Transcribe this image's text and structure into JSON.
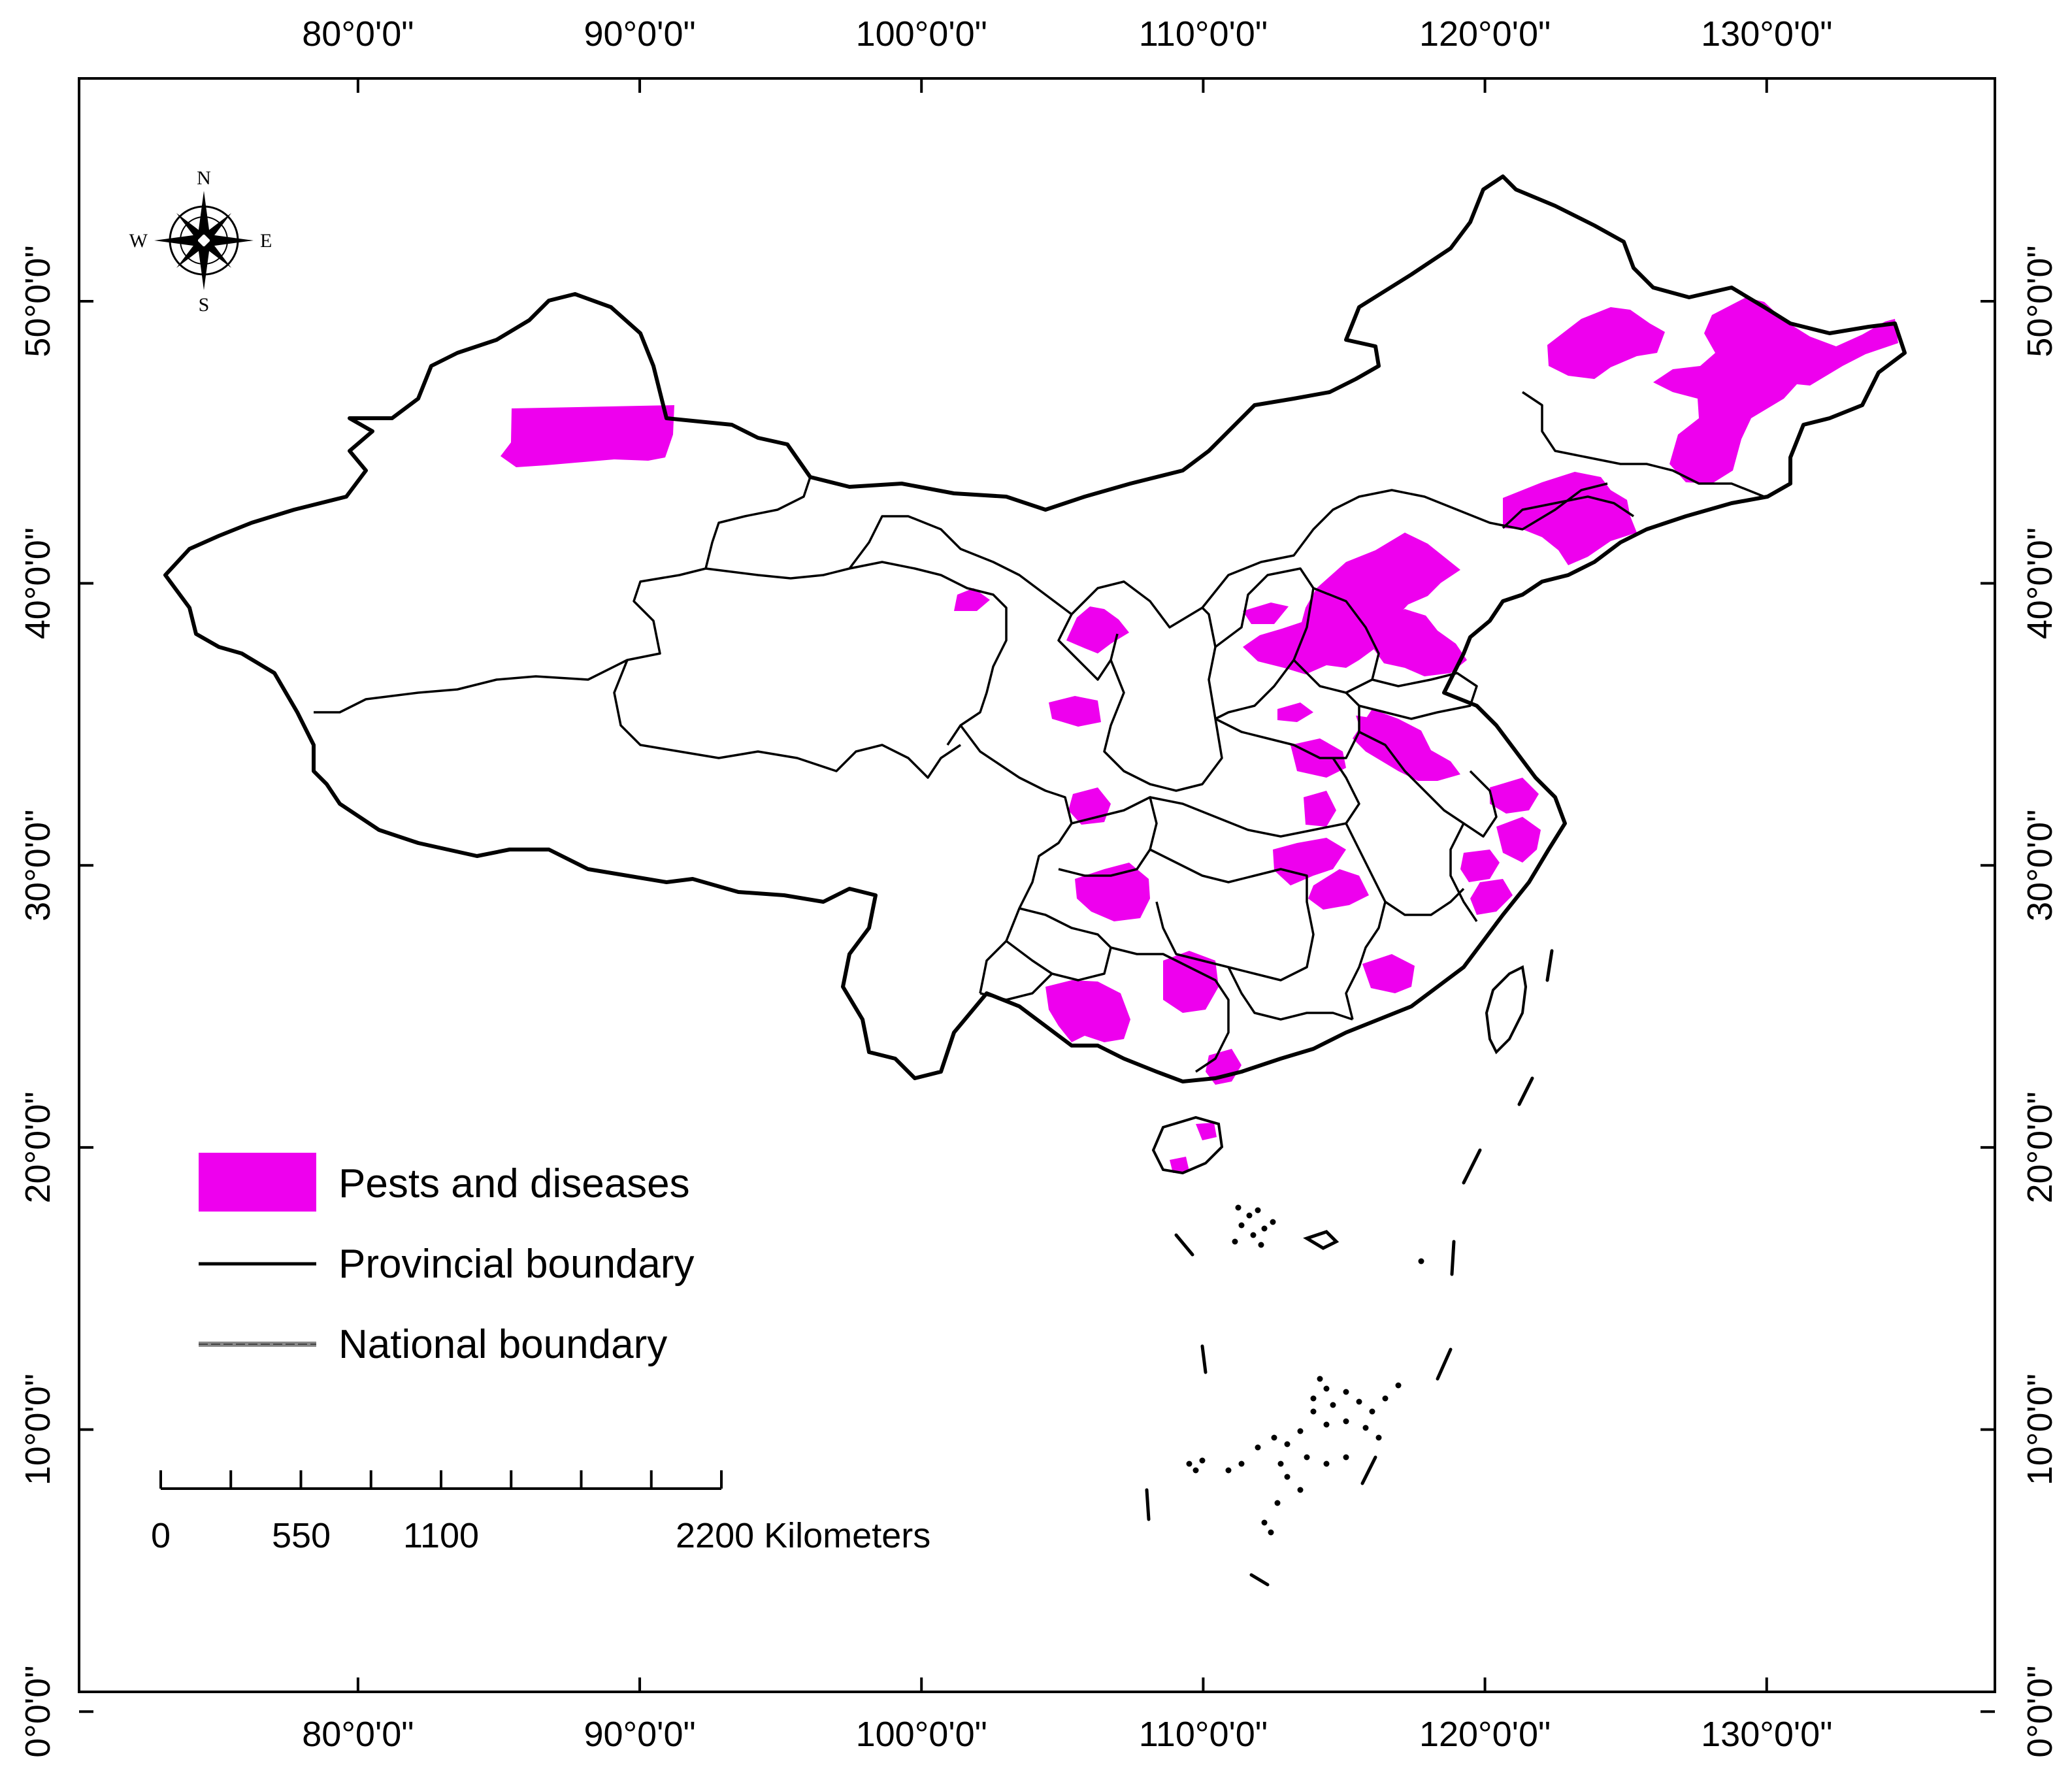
{
  "map": {
    "longitude_labels": [
      "80°0'0\"",
      "90°0'0\"",
      "100°0'0\"",
      "110°0'0\"",
      "120°0'0\"",
      "130°0'0\""
    ],
    "latitude_labels": [
      "0°0'0\"",
      "10°0'0\"",
      "20°0'0\"",
      "30°0'0\"",
      "40°0'0\"",
      "50°0'0\""
    ],
    "longitude_values": [
      80,
      90,
      100,
      110,
      120,
      130
    ],
    "latitude_values": [
      0,
      10,
      20,
      30,
      40,
      50
    ],
    "extent": {
      "lon_min": 70.1,
      "lon_max": 138.1,
      "lat_min": 0.7,
      "lat_max": 57.9
    }
  },
  "compass": {
    "north": "N",
    "south": "S",
    "east": "E",
    "west": "W"
  },
  "legend": {
    "items": [
      {
        "label": "Pests and diseases",
        "color": "#ee00ee"
      },
      {
        "label": "Provincial boundary",
        "color": "#000000"
      },
      {
        "label": "National boundary",
        "color": "#888888"
      }
    ]
  },
  "scale_bar": {
    "labels": [
      "0",
      "550",
      "1100",
      "2200 Kilometers"
    ],
    "values_km": [
      0,
      550,
      1100,
      2200
    ]
  },
  "colors": {
    "highlight": "#ee00ee",
    "boundary": "#000000",
    "national": "#888888"
  }
}
